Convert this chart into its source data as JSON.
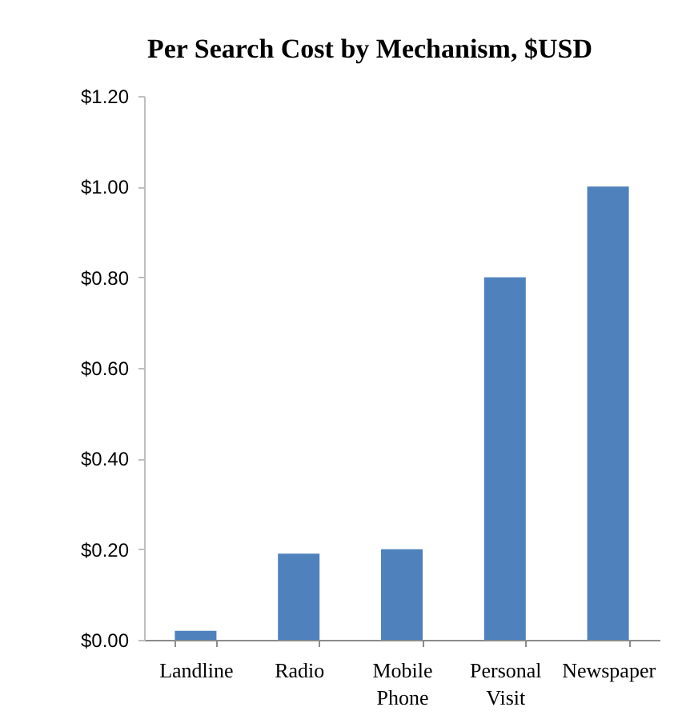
{
  "chart_data": {
    "type": "bar",
    "title": "Per Search Cost by Mechanism, $USD",
    "categories": [
      "Landline",
      "Radio",
      "Mobile Phone",
      "Personal Visit",
      "Newspaper"
    ],
    "values": [
      0.02,
      0.19,
      0.2,
      0.8,
      1.0
    ],
    "color": "#4f81bd",
    "ylim": [
      0,
      1.2
    ],
    "yticks": [
      {
        "value": 0,
        "label": "$0.00"
      },
      {
        "value": 0.2,
        "label": "$0.20"
      },
      {
        "value": 0.4,
        "label": "$0.40"
      },
      {
        "value": 0.6,
        "label": "$0.60"
      },
      {
        "value": 0.8,
        "label": "$0.80"
      },
      {
        "value": 1.0,
        "label": "$1.00"
      },
      {
        "value": 1.2,
        "label": "$1.20"
      }
    ]
  }
}
